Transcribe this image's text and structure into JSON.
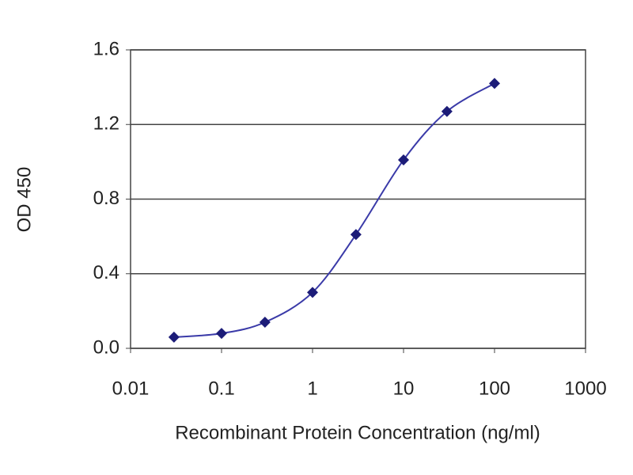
{
  "chart_data": {
    "type": "line",
    "x_label": "Recombinant Protein Concentration (ng/ml)",
    "y_label": "OD 450",
    "xscale": "log",
    "x": [
      0.03,
      0.1,
      0.3,
      1,
      3,
      10,
      30,
      100
    ],
    "series": [
      {
        "color": "#1c1c78",
        "values": [
          0.06,
          0.08,
          0.14,
          0.3,
          0.61,
          1.01,
          1.27,
          1.42
        ]
      }
    ],
    "xlim": [
      0.01,
      1000
    ],
    "xticks": [
      0.01,
      0.1,
      1,
      10,
      100,
      1000
    ],
    "ylim": [
      0,
      1.6
    ],
    "yticks": [
      {
        "value": 0,
        "label": "0.0"
      },
      0.4,
      0.8,
      1.2,
      1.6
    ],
    "grid": true,
    "marker": "diamond",
    "smooth": true
  }
}
